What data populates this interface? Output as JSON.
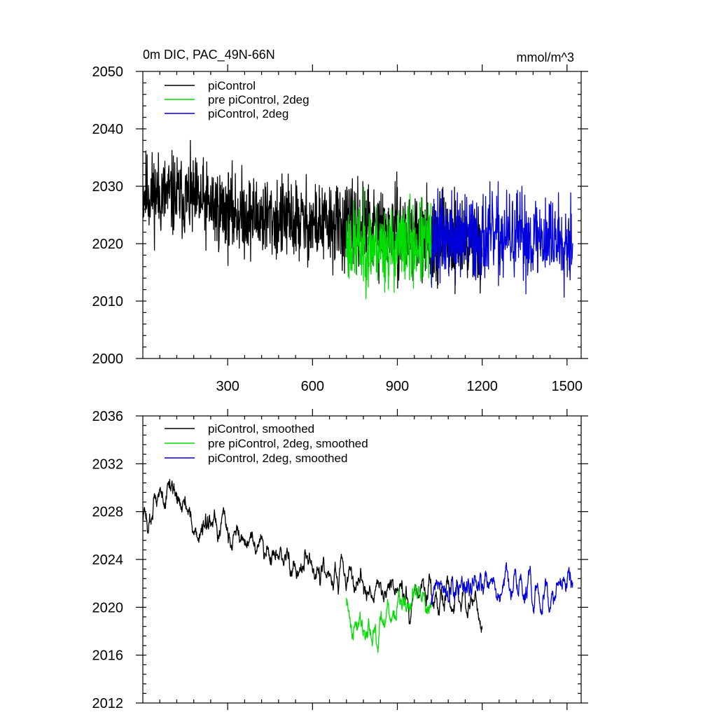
{
  "chart_data": [
    {
      "type": "line",
      "title": "0m DIC, PAC_49N-66N",
      "units_label": "mmol/m^3",
      "xlim": [
        0,
        1550
      ],
      "ylim": [
        2000,
        2050
      ],
      "x_ticks": [
        300,
        600,
        900,
        1200,
        1500
      ],
      "y_ticks": [
        2000,
        2010,
        2020,
        2030,
        2040,
        2050
      ],
      "legend_position": "top-left",
      "series": [
        {
          "name": "piControl",
          "color": "#000000",
          "x_start": 1,
          "x_end": 1200,
          "points": 1200,
          "seed": 11,
          "trend": [
            [
              1,
              2029
            ],
            [
              150,
              2028
            ],
            [
              300,
              2025.5
            ],
            [
              600,
              2023.5
            ],
            [
              900,
              2022
            ],
            [
              1200,
              2020
            ]
          ],
          "noise": 3.6
        },
        {
          "name": "pre piControl, 2deg",
          "color": "#00dd00",
          "x_start": 720,
          "x_end": 1020,
          "points": 300,
          "seed": 23,
          "trend": [
            [
              720,
              2020
            ],
            [
              870,
              2019.5
            ],
            [
              1020,
              2020
            ]
          ],
          "noise": 3.6
        },
        {
          "name": "piControl, 2deg",
          "color": "#0000dd",
          "x_start": 1020,
          "x_end": 1520,
          "points": 500,
          "seed": 37,
          "trend": [
            [
              1020,
              2021
            ],
            [
              1270,
              2021
            ],
            [
              1520,
              2021
            ]
          ],
          "noise": 3.8
        }
      ]
    },
    {
      "type": "line",
      "xlim": [
        0,
        1550
      ],
      "ylim": [
        2012,
        2036
      ],
      "x_ticks": [
        300,
        600,
        900,
        1200,
        1500
      ],
      "y_ticks": [
        2012,
        2016,
        2020,
        2024,
        2028,
        2032,
        2036
      ],
      "legend_position": "top-left",
      "series": [
        {
          "name": "piControl, smoothed",
          "color": "#000000",
          "x_start": 1,
          "x_end": 1200,
          "points": 1200,
          "seed": 51,
          "trend": [
            [
              1,
              2027
            ],
            [
              100,
              2030.5
            ],
            [
              200,
              2026
            ],
            [
              300,
              2026.5
            ],
            [
              450,
              2024.5
            ],
            [
              600,
              2023
            ],
            [
              900,
              2021
            ],
            [
              1100,
              2021
            ],
            [
              1200,
              2019
            ]
          ],
          "noise": 2.2,
          "smooth": 5
        },
        {
          "name": "pre piControl, 2deg, smoothed",
          "color": "#00dd00",
          "x_start": 720,
          "x_end": 1020,
          "points": 300,
          "seed": 63,
          "trend": [
            [
              720,
              2020
            ],
            [
              780,
              2018
            ],
            [
              870,
              2020
            ],
            [
              1020,
              2021
            ]
          ],
          "noise": 2.4,
          "smooth": 5
        },
        {
          "name": "piControl, 2deg, smoothed",
          "color": "#0000dd",
          "x_start": 1020,
          "x_end": 1520,
          "points": 500,
          "seed": 77,
          "trend": [
            [
              1020,
              2021
            ],
            [
              1270,
              2021.5
            ],
            [
              1520,
              2021.5
            ]
          ],
          "noise": 2.6,
          "smooth": 5
        }
      ]
    }
  ]
}
